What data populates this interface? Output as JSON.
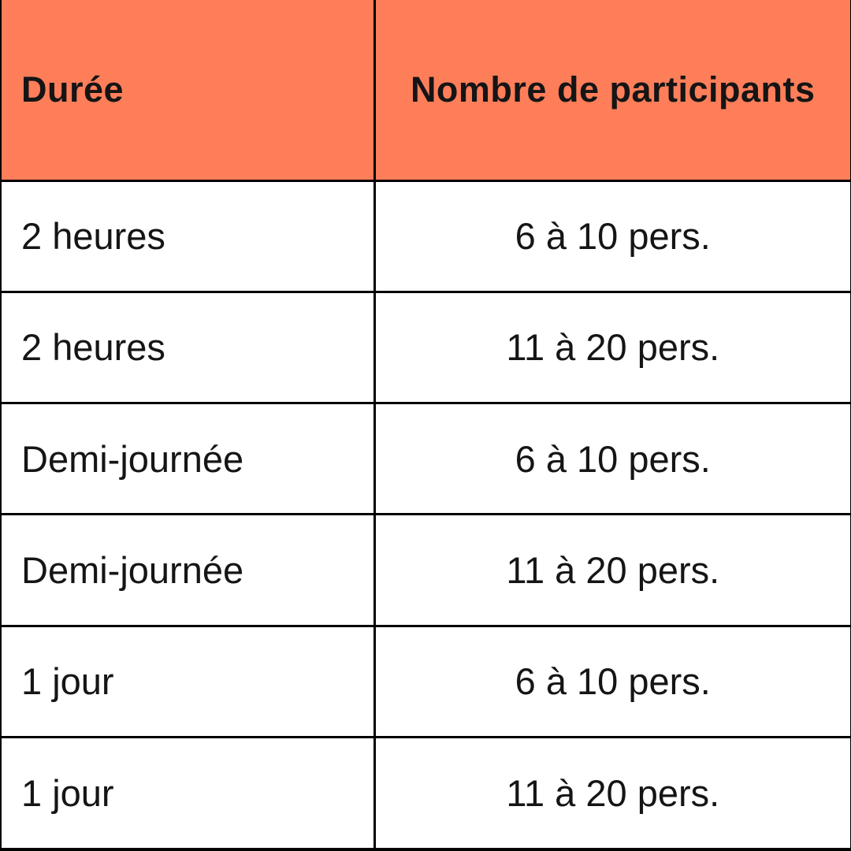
{
  "accent_color": "#FF7E5A",
  "border_color": "#000000",
  "text_color": "#151515",
  "table": {
    "headers": [
      {
        "label": "Durée"
      },
      {
        "label": "Nombre de participants"
      }
    ],
    "rows": [
      {
        "duree": "2 heures",
        "participants": "6 à 10 pers."
      },
      {
        "duree": "2 heures",
        "participants": "11 à 20 pers."
      },
      {
        "duree": "Demi-journée",
        "participants": "6 à 10 pers."
      },
      {
        "duree": "Demi-journée",
        "participants": "11 à 20 pers."
      },
      {
        "duree": "1 jour",
        "participants": "6 à 10 pers."
      },
      {
        "duree": "1 jour",
        "participants": "11 à 20 pers."
      }
    ]
  },
  "chart_data": {
    "type": "table",
    "title": "",
    "columns": [
      "Durée",
      "Nombre de participants"
    ],
    "rows": [
      [
        "2 heures",
        "6 à 10 pers."
      ],
      [
        "2 heures",
        "11 à 20 pers."
      ],
      [
        "Demi-journée",
        "6 à 10 pers."
      ],
      [
        "Demi-journée",
        "11 à 20 pers."
      ],
      [
        "1 jour",
        "6 à 10 pers."
      ],
      [
        "1 jour",
        "11 à 20 pers."
      ]
    ],
    "layout": {
      "header_background": "#FF7E5A",
      "header_text_align": [
        "left",
        "center"
      ],
      "body_text_align": [
        "left",
        "center"
      ],
      "grid": true
    }
  }
}
